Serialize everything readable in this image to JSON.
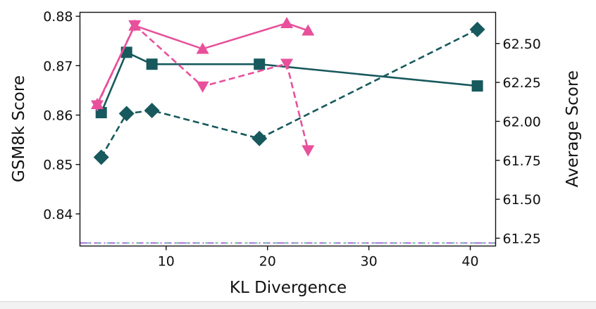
{
  "chart_data": {
    "type": "line",
    "xlabel": "KL Divergence",
    "ylabel_left": "GSM8k Score",
    "ylabel_right": "Average Score",
    "xlim": [
      1.5,
      42.5
    ],
    "ylim_left": [
      0.8335,
      0.8808
    ],
    "ylim_right": [
      61.2,
      62.7
    ],
    "x_ticks": [
      10,
      20,
      30,
      40
    ],
    "y_ticks_left": [
      0.84,
      0.85,
      0.86,
      0.87,
      0.88
    ],
    "y_ticks_right": [
      61.25,
      61.5,
      61.75,
      62.0,
      62.25,
      62.5
    ],
    "x_tick_labels": [
      "10",
      "20",
      "30",
      "40"
    ],
    "y_tick_labels_left": [
      "0.84",
      "0.85",
      "0.86",
      "0.87",
      "0.88"
    ],
    "y_tick_labels_right": [
      "61.25",
      "61.50",
      "61.75",
      "62.00",
      "62.25",
      "62.50"
    ],
    "grid": false,
    "series": [
      {
        "axis": "left",
        "color": "#17595d",
        "linestyle": "solid",
        "marker": "square",
        "points": [
          [
            3.6,
            0.8605
          ],
          [
            6.1,
            0.8727
          ],
          [
            8.6,
            0.8703
          ],
          [
            19.2,
            0.8703
          ],
          [
            40.7,
            0.8659
          ]
        ]
      },
      {
        "axis": "right",
        "color": "#17595d",
        "linestyle": "dashed",
        "marker": "diamond",
        "points": [
          [
            3.6,
            61.77
          ],
          [
            6.1,
            62.05
          ],
          [
            8.6,
            62.07
          ],
          [
            19.2,
            61.89
          ],
          [
            40.7,
            62.59
          ]
        ]
      },
      {
        "axis": "left",
        "color": "#e8509b",
        "linestyle": "solid",
        "marker": "triangle-up",
        "points": [
          [
            3.2,
            0.8622
          ],
          [
            6.9,
            0.8781
          ],
          [
            13.6,
            0.8734
          ],
          [
            21.9,
            0.8786
          ],
          [
            24.0,
            0.8771
          ]
        ]
      },
      {
        "axis": "left",
        "color": "#e8509b",
        "linestyle": "dashed",
        "marker": "triangle-down",
        "points": [
          [
            3.2,
            0.862
          ],
          [
            6.9,
            0.8782
          ],
          [
            13.6,
            0.8658
          ],
          [
            21.9,
            0.8704
          ],
          [
            24.0,
            0.8529
          ]
        ]
      }
    ],
    "reference_line": {
      "axis": "left",
      "value": 0.8341,
      "color": "#a86ee0",
      "color2": "#72c8a6",
      "linestyle": "dashdot"
    }
  }
}
